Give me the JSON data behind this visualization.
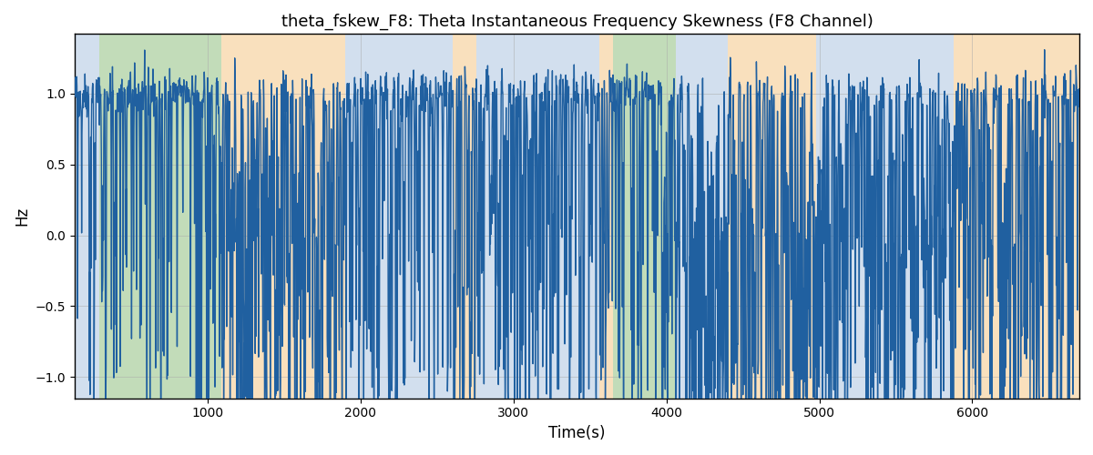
{
  "title": "theta_fskew_F8: Theta Instantaneous Frequency Skewness (F8 Channel)",
  "xlabel": "Time(s)",
  "ylabel": "Hz",
  "xlim": [
    130,
    6700
  ],
  "ylim": [
    -1.15,
    1.42
  ],
  "yticks": [
    -1.0,
    -0.5,
    0.0,
    0.5,
    1.0
  ],
  "xticks": [
    1000,
    2000,
    3000,
    4000,
    5000,
    6000
  ],
  "line_color": "#2060a0",
  "line_width": 1.0,
  "bg_regions": [
    {
      "xmin": 130,
      "xmax": 290,
      "color": "#adc6e0",
      "alpha": 0.55
    },
    {
      "xmin": 290,
      "xmax": 1090,
      "color": "#90c080",
      "alpha": 0.55
    },
    {
      "xmin": 1090,
      "xmax": 1900,
      "color": "#f5c888",
      "alpha": 0.55
    },
    {
      "xmin": 1900,
      "xmax": 2600,
      "color": "#adc6e0",
      "alpha": 0.55
    },
    {
      "xmin": 2600,
      "xmax": 2760,
      "color": "#f5c888",
      "alpha": 0.55
    },
    {
      "xmin": 2760,
      "xmax": 3560,
      "color": "#adc6e0",
      "alpha": 0.55
    },
    {
      "xmin": 3560,
      "xmax": 3650,
      "color": "#f5c888",
      "alpha": 0.55
    },
    {
      "xmin": 3650,
      "xmax": 4060,
      "color": "#90c080",
      "alpha": 0.55
    },
    {
      "xmin": 4060,
      "xmax": 4400,
      "color": "#adc6e0",
      "alpha": 0.55
    },
    {
      "xmin": 4400,
      "xmax": 4980,
      "color": "#f5c888",
      "alpha": 0.55
    },
    {
      "xmin": 4980,
      "xmax": 5880,
      "color": "#adc6e0",
      "alpha": 0.55
    },
    {
      "xmin": 5880,
      "xmax": 6700,
      "color": "#f5c888",
      "alpha": 0.55
    }
  ],
  "grid_color": "#aaaaaa",
  "grid_alpha": 0.5,
  "fig_width": 12.0,
  "fig_height": 5.0,
  "dpi": 100,
  "seed": 42
}
